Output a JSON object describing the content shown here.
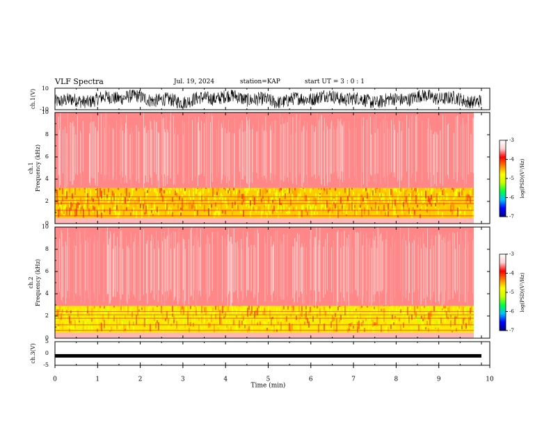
{
  "header": {
    "title": "VLF Spectra",
    "date": "Jul. 19, 2024",
    "station": "station=KAP",
    "start": "start UT =  3 : 0  : 1"
  },
  "colors": {
    "background": "#ffffff",
    "waveform": "#000000",
    "colormap": [
      "#000080",
      "#0000ff",
      "#00c0ff",
      "#00ff40",
      "#c8ff00",
      "#ffff00",
      "#ff8000",
      "#ff0000",
      "#ffd0d0",
      "#ffffff"
    ]
  },
  "chart_data": [
    {
      "type": "line",
      "panel": "ch1-waveform",
      "ylabel": "ch.1(V)",
      "ylim": [
        -10,
        10
      ],
      "yticklabels": [
        "10",
        "-10"
      ],
      "xlim": [
        0,
        10
      ],
      "x_unit": "min",
      "amplitude_range": [
        -8,
        8
      ]
    },
    {
      "type": "heatmap",
      "panel": "ch1-spectrogram",
      "ylabel": "ch.1 Frequency (kHz)",
      "ylabel_line1": "ch.1",
      "ylabel_line2": "Frequency (kHz)",
      "ylim": [
        0,
        10
      ],
      "yticks": [
        0,
        2,
        4,
        6,
        8,
        10
      ],
      "xlim": [
        0,
        9.82
      ],
      "colorbar": {
        "label": "log(PSD)(V²/Hz)",
        "range": [
          -7,
          -3
        ],
        "ticks": [
          -3,
          -4,
          -5,
          -6,
          -7
        ],
        "ticklabels": [
          "-3",
          "-4",
          "-5",
          "-6",
          "-7"
        ]
      },
      "bands": [
        {
          "freq_khz": [
            0,
            0.5
          ],
          "log_psd": -3.5
        },
        {
          "freq_khz": [
            0.5,
            3.2
          ],
          "log_psd": -4.6
        },
        {
          "freq_khz": [
            3.2,
            10
          ],
          "log_psd": -3.6
        }
      ]
    },
    {
      "type": "heatmap",
      "panel": "ch2-spectrogram",
      "ylabel": "ch.2 Frequency (kHz)",
      "ylabel_line1": "ch.2",
      "ylabel_line2": "Frequency (kHz)",
      "ylim": [
        0,
        10
      ],
      "yticks": [
        0,
        2,
        4,
        6,
        8,
        10
      ],
      "xlim": [
        0,
        9.82
      ],
      "colorbar": {
        "label": "log(PSD)(V²/Hz)",
        "range": [
          -7,
          -3
        ],
        "ticks": [
          -3,
          -4,
          -5,
          -6,
          -7
        ],
        "ticklabels": [
          "-3",
          "-4",
          "-5",
          "-6",
          "-7"
        ]
      },
      "bands": [
        {
          "freq_khz": [
            0,
            0.5
          ],
          "log_psd": -3.5
        },
        {
          "freq_khz": [
            0.5,
            2.9
          ],
          "log_psd": -4.7
        },
        {
          "freq_khz": [
            2.9,
            10
          ],
          "log_psd": -3.6
        }
      ]
    },
    {
      "type": "line",
      "panel": "ch3-waveform",
      "ylabel": "ch.3(V)",
      "ylim": [
        -5,
        5
      ],
      "yticklabels": [
        "5",
        "0",
        "-5"
      ],
      "level_v": -1.0,
      "xlim": [
        0,
        10
      ],
      "xlabel": "Time (min)",
      "xticks": [
        0,
        1,
        2,
        3,
        4,
        5,
        6,
        7,
        8,
        9,
        10
      ],
      "xticklabels": [
        "0",
        "1",
        "2",
        "3",
        "4",
        "5",
        "6",
        "7",
        "8",
        "9",
        "10"
      ]
    }
  ]
}
